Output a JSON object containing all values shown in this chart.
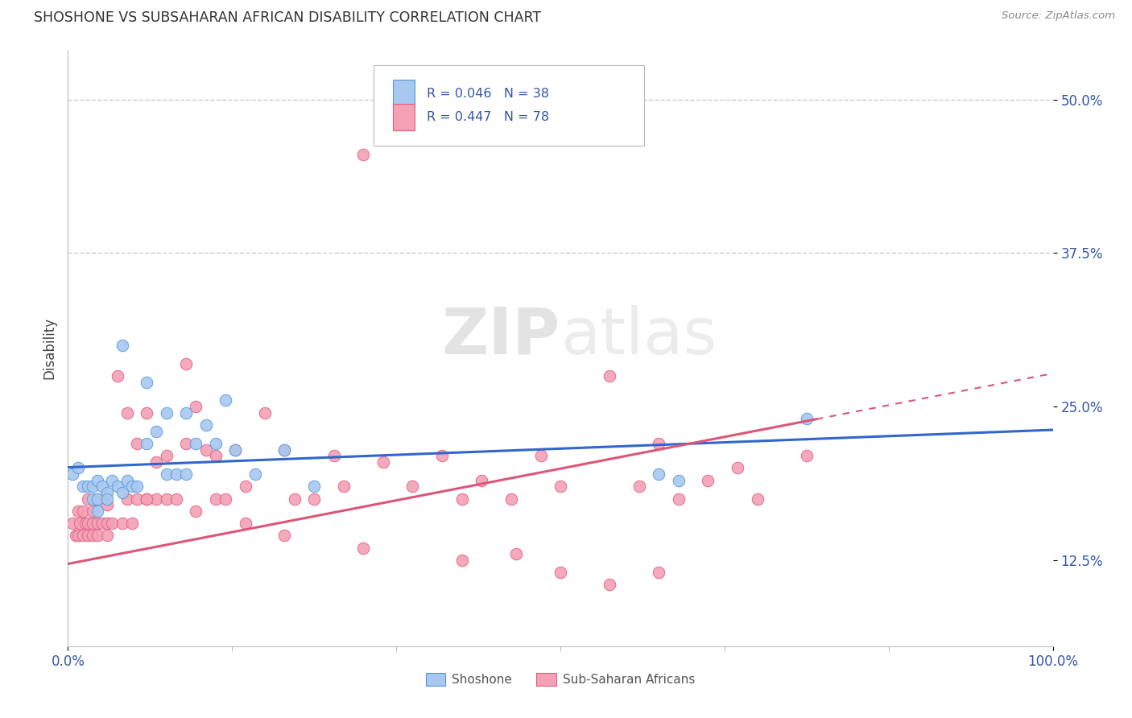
{
  "title": "SHOSHONE VS SUBSAHARAN AFRICAN DISABILITY CORRELATION CHART",
  "source": "Source: ZipAtlas.com",
  "ylabel": "Disability",
  "yticks": [
    0.125,
    0.25,
    0.375,
    0.5
  ],
  "ytick_labels": [
    "12.5%",
    "25.0%",
    "37.5%",
    "50.0%"
  ],
  "xlim": [
    0.0,
    1.0
  ],
  "ylim": [
    0.055,
    0.54
  ],
  "legend_labels": [
    "Shoshone",
    "Sub-Saharan Africans"
  ],
  "shoshone_color": "#A8C8F0",
  "subsaharan_color": "#F4A0B5",
  "shoshone_edge_color": "#5599DD",
  "subsaharan_edge_color": "#E06080",
  "shoshone_line_color": "#3366CC",
  "subsaharan_line_color": "#DD5577",
  "R_shoshone": "0.046",
  "N_shoshone": "38",
  "R_subsaharan": "0.447",
  "N_subsaharan": "78",
  "legend_text_color": "#3355AA",
  "shoshone_x": [
    0.005,
    0.01,
    0.015,
    0.02,
    0.025,
    0.025,
    0.03,
    0.03,
    0.03,
    0.035,
    0.04,
    0.04,
    0.045,
    0.05,
    0.055,
    0.06,
    0.065,
    0.07,
    0.08,
    0.09,
    0.1,
    0.1,
    0.11,
    0.12,
    0.13,
    0.14,
    0.15,
    0.16,
    0.17,
    0.19,
    0.22,
    0.25,
    0.12,
    0.6,
    0.62,
    0.75,
    0.055,
    0.08
  ],
  "shoshone_y": [
    0.195,
    0.2,
    0.185,
    0.185,
    0.175,
    0.185,
    0.19,
    0.175,
    0.165,
    0.185,
    0.18,
    0.175,
    0.19,
    0.185,
    0.18,
    0.19,
    0.185,
    0.185,
    0.27,
    0.23,
    0.245,
    0.195,
    0.195,
    0.245,
    0.22,
    0.235,
    0.22,
    0.255,
    0.215,
    0.195,
    0.215,
    0.185,
    0.195,
    0.195,
    0.19,
    0.24,
    0.3,
    0.22
  ],
  "subsaharan_x": [
    0.005,
    0.008,
    0.01,
    0.01,
    0.012,
    0.015,
    0.015,
    0.018,
    0.02,
    0.02,
    0.02,
    0.025,
    0.025,
    0.025,
    0.03,
    0.03,
    0.03,
    0.035,
    0.04,
    0.04,
    0.04,
    0.045,
    0.05,
    0.055,
    0.06,
    0.06,
    0.065,
    0.07,
    0.07,
    0.08,
    0.08,
    0.09,
    0.09,
    0.1,
    0.1,
    0.11,
    0.12,
    0.12,
    0.13,
    0.14,
    0.15,
    0.15,
    0.16,
    0.17,
    0.18,
    0.2,
    0.22,
    0.23,
    0.25,
    0.27,
    0.28,
    0.3,
    0.32,
    0.35,
    0.38,
    0.4,
    0.42,
    0.45,
    0.48,
    0.5,
    0.55,
    0.58,
    0.6,
    0.62,
    0.65,
    0.68,
    0.7,
    0.75,
    0.08,
    0.13,
    0.18,
    0.22,
    0.3,
    0.4,
    0.5,
    0.55,
    0.6,
    0.455
  ],
  "subsaharan_y": [
    0.155,
    0.145,
    0.165,
    0.145,
    0.155,
    0.165,
    0.145,
    0.155,
    0.175,
    0.155,
    0.145,
    0.165,
    0.155,
    0.145,
    0.175,
    0.155,
    0.145,
    0.155,
    0.17,
    0.155,
    0.145,
    0.155,
    0.275,
    0.155,
    0.245,
    0.175,
    0.155,
    0.22,
    0.175,
    0.245,
    0.175,
    0.205,
    0.175,
    0.21,
    0.175,
    0.175,
    0.285,
    0.22,
    0.25,
    0.215,
    0.21,
    0.175,
    0.175,
    0.215,
    0.185,
    0.245,
    0.215,
    0.175,
    0.175,
    0.21,
    0.185,
    0.455,
    0.205,
    0.185,
    0.21,
    0.175,
    0.19,
    0.175,
    0.21,
    0.185,
    0.275,
    0.185,
    0.22,
    0.175,
    0.19,
    0.2,
    0.175,
    0.21,
    0.175,
    0.165,
    0.155,
    0.145,
    0.135,
    0.125,
    0.115,
    0.105,
    0.115,
    0.13
  ],
  "watermark_zip": "ZIP",
  "watermark_atlas": "atlas",
  "background_color": "#FFFFFF",
  "grid_color": "#DDDDDD",
  "dashed_line_color": "#CCCCCC"
}
